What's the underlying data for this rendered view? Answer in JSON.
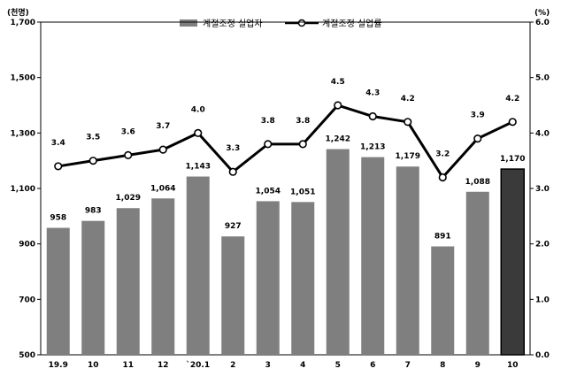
{
  "chart_data": {
    "type": "bar+line",
    "left_axis_unit": "(천명)",
    "right_axis_unit": "(%)",
    "categories": [
      "19.9",
      "10",
      "11",
      "12",
      "`20.1",
      "2",
      "3",
      "4",
      "5",
      "6",
      "7",
      "8",
      "9",
      "10"
    ],
    "series": [
      {
        "name": "계절조정 실업자",
        "type": "bar",
        "axis": "left",
        "values": [
          958,
          983,
          1029,
          1064,
          1143,
          927,
          1054,
          1051,
          1242,
          1213,
          1179,
          891,
          1088,
          1170
        ],
        "labels": [
          "958",
          "983",
          "1,029",
          "1,064",
          "1,143",
          "927",
          "1,054",
          "1,051",
          "1,242",
          "1,213",
          "1,179",
          "891",
          "1,088",
          "1,170"
        ],
        "color": "#7f7f7f",
        "highlight_color": "#3a3a3a"
      },
      {
        "name": "계절조정 실업률",
        "type": "line",
        "axis": "right",
        "values": [
          3.4,
          3.5,
          3.6,
          3.7,
          4.0,
          3.3,
          3.8,
          3.8,
          4.5,
          4.3,
          4.2,
          3.2,
          3.9,
          4.2
        ],
        "labels": [
          "3.4",
          "3.5",
          "3.6",
          "3.7",
          "4.0",
          "3.3",
          "3.8",
          "3.8",
          "4.5",
          "4.3",
          "4.2",
          "3.2",
          "3.9",
          "4.2"
        ],
        "color": "#000000"
      }
    ],
    "left_axis": {
      "min": 500,
      "max": 1700,
      "ticks": [
        "500",
        "700",
        "900",
        "1,100",
        "1,300",
        "1,500",
        "1,700"
      ]
    },
    "right_axis": {
      "min": 0.0,
      "max": 6.0,
      "ticks": [
        "0.0",
        "1.0",
        "2.0",
        "3.0",
        "4.0",
        "5.0",
        "6.0"
      ]
    },
    "legend_placement": "top-center",
    "grid": false
  }
}
